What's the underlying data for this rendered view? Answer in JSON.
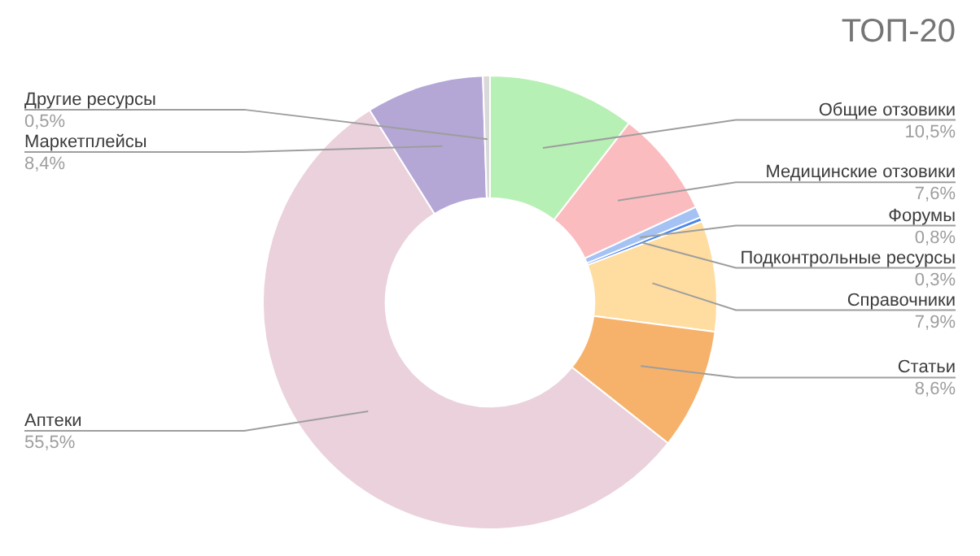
{
  "chart_data": {
    "type": "donut",
    "title": "ТОП-20",
    "categories": [
      "Общие отзовики",
      "Медицинские отзовики",
      "Форумы",
      "Подконтрольные ресурсы",
      "Справочники",
      "Статьи",
      "Аптеки",
      "Маркетплейсы",
      "Другие ресурсы"
    ],
    "values": [
      10.5,
      7.6,
      0.8,
      0.3,
      7.9,
      8.6,
      55.5,
      8.4,
      0.5
    ],
    "value_labels": [
      "10,5%",
      "7,6%",
      "0,8%",
      "0,3%",
      "7,9%",
      "8,6%",
      "55,5%",
      "8,4%",
      "0,5%"
    ],
    "colors": [
      "#b7f0b5",
      "#fbbcbf",
      "#a4c2f4",
      "#4a86e8",
      "#ffdca0",
      "#f6b26b",
      "#ead1dc",
      "#b4a7d6",
      "#d9d9d9"
    ],
    "legend": false
  }
}
